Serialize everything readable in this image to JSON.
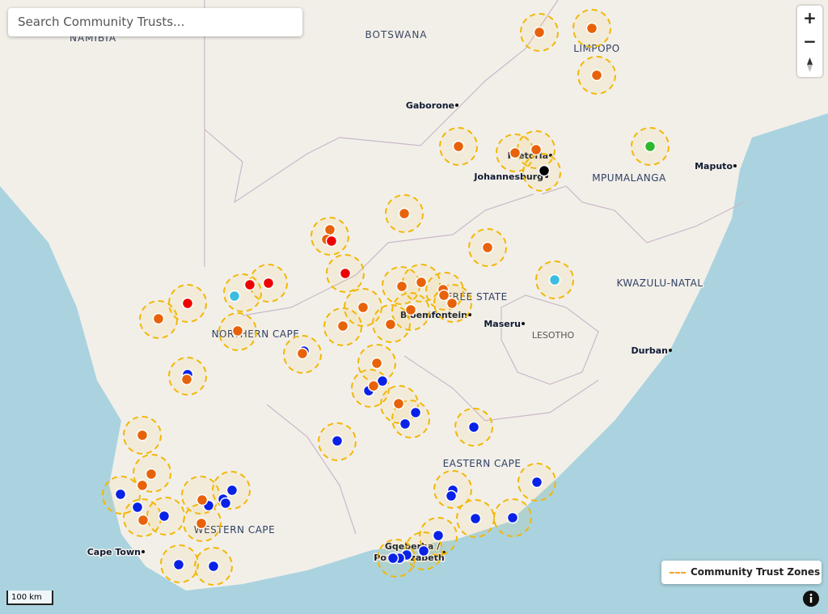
{
  "search": {
    "placeholder": "Search Community Trusts..."
  },
  "map": {
    "labels": [
      "NAMIBIA",
      "BOTSWANA",
      "LIMPOPO",
      "Gaborone",
      "Pretoria",
      "Johannesburg",
      "MPUMALANGA",
      "Maputo",
      "FREE STATE",
      "Bloemfontein",
      "Maseru",
      "LESOTHO",
      "KWAZULU-NATAL",
      "NORTHERN CAPE",
      "Durban",
      "EASTERN CAPE",
      "WESTERN CAPE",
      "Cape Town",
      "Gqeberha /",
      "Port Elizabeth"
    ]
  },
  "controls": {
    "zoom_in": "+",
    "zoom_out": "−"
  },
  "legend": {
    "label": "Community Trust Zones"
  },
  "scale": {
    "label": "100 km"
  }
}
